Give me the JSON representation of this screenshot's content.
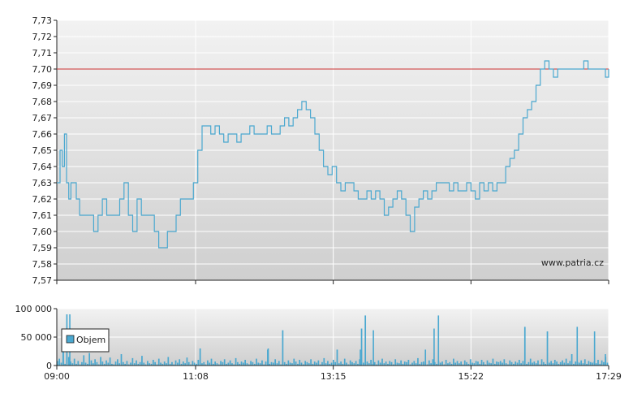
{
  "chart_data": [
    {
      "type": "line",
      "title": "",
      "xlabel": "",
      "ylabel": "",
      "ylim": [
        7.57,
        7.73
      ],
      "y_ticks": [
        "7,57",
        "7,58",
        "7,59",
        "7,60",
        "7,61",
        "7,62",
        "7,63",
        "7,64",
        "7,65",
        "7,66",
        "7,67",
        "7,68",
        "7,69",
        "7,70",
        "7,71",
        "7,72",
        "7,73"
      ],
      "x_ticks": [
        "09:00",
        "11:08",
        "13:15",
        "15:22",
        "17:29"
      ],
      "reference_line": {
        "value": 7.7,
        "color": "#cc3333"
      },
      "watermark": "www.patria.cz",
      "grid": true,
      "series_color": "#4aa8d0",
      "series": [
        {
          "name": "",
          "x": [
            "09:00",
            "09:03",
            "09:05",
            "09:07",
            "09:09",
            "09:11",
            "09:13",
            "09:15",
            "09:18",
            "09:21",
            "09:25",
            "09:30",
            "09:34",
            "09:38",
            "09:42",
            "09:46",
            "09:50",
            "09:54",
            "09:58",
            "10:02",
            "10:06",
            "10:10",
            "10:14",
            "10:18",
            "10:22",
            "10:26",
            "10:30",
            "10:34",
            "10:38",
            "10:42",
            "10:46",
            "10:50",
            "10:54",
            "10:58",
            "11:02",
            "11:06",
            "11:10",
            "11:14",
            "11:18",
            "11:22",
            "11:26",
            "11:30",
            "11:34",
            "11:38",
            "11:42",
            "11:46",
            "11:50",
            "11:54",
            "11:58",
            "12:02",
            "12:06",
            "12:10",
            "12:14",
            "12:18",
            "12:22",
            "12:26",
            "12:30",
            "12:34",
            "12:38",
            "12:42",
            "12:46",
            "12:50",
            "12:54",
            "12:58",
            "13:02",
            "13:06",
            "13:10",
            "13:14",
            "13:18",
            "13:22",
            "13:26",
            "13:30",
            "13:34",
            "13:38",
            "13:42",
            "13:46",
            "13:50",
            "13:54",
            "13:58",
            "14:02",
            "14:06",
            "14:10",
            "14:14",
            "14:18",
            "14:22",
            "14:26",
            "14:30",
            "14:34",
            "14:38",
            "14:42",
            "14:46",
            "14:50",
            "14:54",
            "14:58",
            "15:02",
            "15:06",
            "15:10",
            "15:14",
            "15:18",
            "15:22",
            "15:26",
            "15:30",
            "15:34",
            "15:38",
            "15:42",
            "15:46",
            "15:50",
            "15:54",
            "15:58",
            "16:02",
            "16:06",
            "16:10",
            "16:14",
            "16:18",
            "16:22",
            "16:26",
            "16:30",
            "16:34",
            "16:38",
            "16:42",
            "16:46",
            "16:50",
            "16:54",
            "16:58",
            "17:02",
            "17:06",
            "17:10",
            "17:14",
            "17:18",
            "17:22",
            "17:26",
            "17:29"
          ],
          "values": [
            7.63,
            7.65,
            7.64,
            7.66,
            7.63,
            7.62,
            7.63,
            7.63,
            7.62,
            7.61,
            7.61,
            7.61,
            7.6,
            7.61,
            7.62,
            7.61,
            7.61,
            7.61,
            7.62,
            7.63,
            7.61,
            7.6,
            7.62,
            7.61,
            7.61,
            7.61,
            7.6,
            7.59,
            7.59,
            7.6,
            7.6,
            7.61,
            7.62,
            7.62,
            7.62,
            7.63,
            7.65,
            7.665,
            7.665,
            7.66,
            7.665,
            7.66,
            7.655,
            7.66,
            7.66,
            7.655,
            7.66,
            7.66,
            7.665,
            7.66,
            7.66,
            7.66,
            7.665,
            7.66,
            7.66,
            7.665,
            7.67,
            7.665,
            7.67,
            7.675,
            7.68,
            7.675,
            7.67,
            7.66,
            7.65,
            7.64,
            7.635,
            7.64,
            7.63,
            7.625,
            7.63,
            7.63,
            7.625,
            7.62,
            7.62,
            7.625,
            7.62,
            7.625,
            7.62,
            7.61,
            7.615,
            7.62,
            7.625,
            7.62,
            7.61,
            7.6,
            7.615,
            7.62,
            7.625,
            7.62,
            7.625,
            7.63,
            7.63,
            7.63,
            7.625,
            7.63,
            7.625,
            7.625,
            7.63,
            7.625,
            7.62,
            7.63,
            7.625,
            7.63,
            7.625,
            7.63,
            7.63,
            7.64,
            7.645,
            7.65,
            7.66,
            7.67,
            7.675,
            7.68,
            7.69,
            7.7,
            7.705,
            7.7,
            7.695,
            7.7,
            7.7,
            7.7,
            7.7,
            7.7,
            7.7,
            7.705,
            7.7,
            7.7,
            7.7,
            7.7,
            7.695,
            7.7
          ]
        }
      ]
    },
    {
      "type": "bar",
      "title": "",
      "xlabel": "",
      "ylabel": "",
      "ylim": [
        0,
        100000
      ],
      "y_ticks": [
        "0",
        "50 000",
        "100 000"
      ],
      "x_ticks": [
        "09:00",
        "11:08",
        "13:15",
        "15:22",
        "17:29"
      ],
      "legend": {
        "label": "Objem",
        "placement": "left"
      },
      "series_color": "#4aa8d0",
      "bar_count": 300,
      "spikes": [
        {
          "x": "09:12",
          "value": 90000
        },
        {
          "x": "09:06",
          "value": 65000
        },
        {
          "x": "14:48",
          "value": 65000
        },
        {
          "x": "14:52",
          "value": 88000
        },
        {
          "x": "13:52",
          "value": 62000
        },
        {
          "x": "17:00",
          "value": 68000
        },
        {
          "x": "17:16",
          "value": 60000
        },
        {
          "x": "14:40",
          "value": 28000
        },
        {
          "x": "13:40",
          "value": 28000
        },
        {
          "x": "12:15",
          "value": 30000
        },
        {
          "x": "17:26",
          "value": 20000
        }
      ],
      "series": [
        {
          "name": "Objem",
          "values": [
            8000,
            12000,
            5000,
            65000,
            3000,
            90000,
            15000,
            7000,
            4000,
            12000,
            3000,
            8000,
            2000,
            6000,
            18000,
            5000,
            3000,
            22000,
            9000,
            4000,
            11000,
            6000,
            2000,
            15000,
            7000,
            3000,
            9000,
            5000,
            14000,
            3000,
            2000,
            7000,
            11000,
            4000,
            20000,
            6000,
            3000,
            8000,
            2000,
            5000,
            13000,
            4000,
            9000,
            3000,
            6000,
            17000,
            5000,
            2000,
            8000,
            4000,
            3000,
            10000,
            6000,
            2000,
            12000,
            5000,
            3000,
            7000,
            4000,
            15000,
            3000,
            6000,
            2000,
            9000,
            5000,
            11000,
            3000,
            7000,
            4000,
            14000,
            6000,
            2000,
            8000,
            5000,
            3000,
            10000,
            30000,
            4000,
            6000,
            2000,
            9000,
            5000,
            12000,
            3000,
            7000,
            4000,
            2000,
            8000,
            6000,
            11000,
            3000,
            5000,
            9000,
            4000,
            2000,
            13000,
            6000,
            3000,
            7000,
            5000,
            10000,
            4000,
            2000,
            8000,
            6000,
            3000,
            12000,
            5000,
            4000,
            9000,
            2000,
            7000,
            28000,
            3000,
            6000,
            5000,
            11000,
            4000,
            8000,
            2000,
            62000,
            6000,
            3000,
            9000,
            5000,
            4000,
            12000,
            7000,
            3000,
            10000,
            5000,
            2000,
            8000,
            6000,
            4000,
            11000,
            3000,
            7000,
            5000,
            9000,
            2000,
            6000,
            13000,
            4000,
            8000,
            3000,
            5000,
            10000,
            6000,
            28000,
            4000,
            7000,
            3000,
            12000,
            5000,
            2000,
            9000,
            6000,
            4000,
            8000,
            3000,
            11000,
            65000,
            5000,
            88000,
            7000,
            4000,
            10000,
            3000,
            6000,
            2000,
            9000,
            5000,
            12000,
            4000,
            7000,
            3000,
            8000,
            6000,
            2000,
            11000,
            5000,
            4000,
            9000,
            3000,
            7000,
            6000,
            10000,
            2000,
            5000,
            8000,
            4000,
            13000,
            3000,
            6000,
            7000,
            5000,
            2000,
            9000,
            4000,
            11000,
            6000,
            3000,
            8000,
            5000,
            7000,
            2000,
            10000,
            4000,
            6000,
            3000,
            12000,
            5000,
            8000,
            4000,
            7000,
            2000,
            9000,
            6000,
            3000,
            11000,
            5000,
            4000,
            8000,
            7000,
            3000,
            10000,
            6000,
            2000,
            9000,
            5000,
            4000,
            12000,
            3000,
            7000,
            6000,
            8000,
            5000,
            11000,
            4000,
            2000,
            9000,
            6000,
            3000,
            7000,
            5000,
            10000,
            4000,
            8000,
            68000,
            3000,
            6000,
            12000,
            5000,
            7000,
            4000,
            9000,
            2000,
            11000,
            6000,
            3000,
            60000,
            5000,
            8000,
            4000,
            10000,
            7000,
            3000,
            6000,
            9000,
            5000,
            12000,
            4000,
            8000,
            20000,
            3000,
            7000,
            6000,
            5000,
            9000,
            4000,
            11000,
            3000,
            8000,
            6000,
            5000,
            7000,
            4000,
            10000,
            3000,
            9000,
            6000,
            15000,
            5000
          ]
        }
      ]
    }
  ]
}
